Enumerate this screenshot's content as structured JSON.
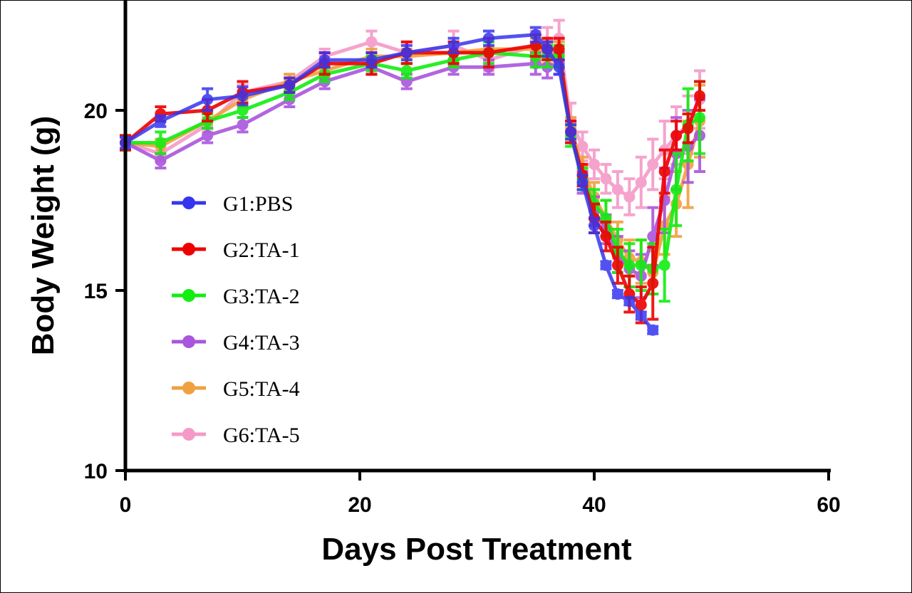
{
  "chart_data": {
    "type": "line",
    "title": "",
    "xlabel": "Days Post Treatment",
    "ylabel": "Body Weight (g)",
    "xlim": [
      0,
      60
    ],
    "ylim": [
      10,
      22.8
    ],
    "x_ticks": [
      "0",
      "20",
      "40",
      "60"
    ],
    "y_ticks": [
      "10",
      "15",
      "20"
    ],
    "grid": false,
    "legend_position": "left",
    "series": [
      {
        "name": "G1:PBS",
        "color": "#3535f0",
        "x": [
          0,
          3,
          7,
          10,
          14,
          17,
          21,
          24,
          28,
          31,
          35,
          36,
          37,
          38,
          39,
          40,
          41,
          42,
          43,
          44,
          45
        ],
        "y": [
          19.1,
          19.7,
          20.3,
          20.4,
          20.7,
          21.4,
          21.4,
          21.6,
          21.8,
          22.0,
          22.1,
          21.7,
          21.2,
          19.4,
          18.0,
          16.8,
          15.7,
          14.9,
          14.7,
          14.3,
          13.9
        ],
        "err": [
          0.15,
          0.15,
          0.3,
          0.25,
          0.2,
          0.2,
          0.2,
          0.2,
          0.2,
          0.2,
          0.2,
          0.2,
          0.2,
          0.2,
          0.2,
          0.2,
          0.1,
          0.1,
          0.1,
          0.1,
          0.1
        ]
      },
      {
        "name": "G2:TA-1",
        "color": "#ee0000",
        "x": [
          0,
          3,
          7,
          10,
          14,
          17,
          21,
          24,
          28,
          31,
          35,
          36,
          37,
          38,
          39,
          40,
          41,
          42,
          43,
          44,
          45,
          46,
          47,
          48,
          49
        ],
        "y": [
          19.1,
          19.9,
          20.0,
          20.5,
          20.7,
          21.3,
          21.3,
          21.6,
          21.6,
          21.6,
          21.8,
          21.7,
          21.7,
          19.4,
          18.2,
          17.0,
          16.5,
          15.7,
          14.9,
          14.6,
          15.2,
          18.3,
          19.3,
          19.5,
          20.4
        ],
        "err": [
          0.2,
          0.2,
          0.3,
          0.3,
          0.2,
          0.3,
          0.3,
          0.3,
          0.3,
          0.4,
          0.3,
          0.3,
          0.3,
          0.3,
          0.3,
          0.4,
          0.4,
          0.5,
          0.5,
          0.5,
          1.0,
          0.6,
          0.4,
          0.4,
          0.4
        ]
      },
      {
        "name": "G3:TA-2",
        "color": "#11ee11",
        "x": [
          0,
          3,
          7,
          10,
          14,
          17,
          21,
          24,
          28,
          31,
          35,
          36,
          37,
          38,
          39,
          40,
          41,
          42,
          43,
          44,
          45,
          46,
          47,
          48,
          49
        ],
        "y": [
          19.1,
          19.1,
          19.7,
          20.0,
          20.5,
          21.0,
          21.3,
          21.1,
          21.4,
          21.6,
          21.5,
          21.5,
          21.5,
          19.3,
          18.1,
          17.4,
          17.0,
          16.1,
          15.7,
          15.7,
          15.6,
          15.7,
          17.8,
          19.6,
          19.8
        ],
        "err": [
          0.2,
          0.3,
          0.2,
          0.2,
          0.2,
          0.2,
          0.2,
          0.2,
          0.2,
          0.3,
          0.3,
          0.3,
          0.3,
          0.3,
          0.3,
          0.4,
          0.5,
          0.6,
          0.6,
          0.7,
          0.7,
          1.0,
          1.0,
          1.0,
          1.0
        ]
      },
      {
        "name": "G4:TA-3",
        "color": "#aa55dd",
        "x": [
          0,
          3,
          7,
          10,
          14,
          17,
          21,
          24,
          28,
          31,
          35,
          36,
          37,
          38,
          39,
          40,
          41,
          42,
          43,
          44,
          45,
          46,
          47,
          48,
          49
        ],
        "y": [
          19.1,
          18.6,
          19.3,
          19.6,
          20.3,
          20.8,
          21.2,
          20.8,
          21.2,
          21.2,
          21.3,
          21.2,
          21.3,
          19.4,
          18.0,
          17.2,
          16.7,
          16.0,
          15.6,
          15.4,
          16.5,
          17.5,
          18.8,
          19.0,
          19.3
        ],
        "err": [
          0.2,
          0.2,
          0.2,
          0.2,
          0.2,
          0.2,
          0.2,
          0.2,
          0.2,
          0.2,
          0.3,
          0.3,
          0.3,
          0.3,
          0.3,
          0.4,
          0.4,
          0.5,
          0.5,
          0.6,
          0.8,
          0.9,
          1.0,
          1.0,
          1.0
        ]
      },
      {
        "name": "G5:TA-4",
        "color": "#f0a040",
        "x": [
          0,
          3,
          7,
          10,
          14,
          17,
          21,
          24,
          28,
          31,
          35,
          36,
          37,
          38,
          39,
          40,
          41,
          42,
          43,
          44,
          45,
          46,
          47,
          48,
          49
        ],
        "y": [
          19.1,
          19.0,
          19.7,
          20.3,
          20.8,
          21.1,
          21.5,
          21.5,
          21.6,
          21.7,
          21.7,
          21.6,
          21.6,
          19.5,
          18.4,
          17.6,
          17.0,
          16.4,
          15.9,
          15.8,
          15.5,
          16.8,
          17.4,
          18.5,
          19.7
        ],
        "err": [
          0.2,
          0.2,
          0.2,
          0.2,
          0.2,
          0.2,
          0.2,
          0.2,
          0.3,
          0.3,
          0.3,
          0.3,
          0.3,
          0.3,
          0.3,
          0.4,
          0.5,
          0.5,
          0.5,
          0.6,
          0.6,
          0.8,
          0.9,
          1.2,
          1.0
        ]
      },
      {
        "name": "G6:TA-5",
        "color": "#f59ac8",
        "x": [
          0,
          3,
          7,
          10,
          14,
          17,
          21,
          24,
          28,
          31,
          35,
          36,
          37,
          38,
          39,
          40,
          41,
          42,
          43,
          44,
          45,
          46,
          47,
          48,
          49
        ],
        "y": [
          19.1,
          18.8,
          19.6,
          20.5,
          20.8,
          21.5,
          21.9,
          21.6,
          21.8,
          21.4,
          21.8,
          21.9,
          22.0,
          19.7,
          19.0,
          18.5,
          18.1,
          17.8,
          17.6,
          18.0,
          18.5,
          18.9,
          19.3,
          19.6,
          20.3
        ],
        "err": [
          0.2,
          0.2,
          0.2,
          0.2,
          0.2,
          0.2,
          0.3,
          0.3,
          0.4,
          0.3,
          0.4,
          0.4,
          0.5,
          0.5,
          0.4,
          0.4,
          0.4,
          0.5,
          0.5,
          0.7,
          0.7,
          0.8,
          0.8,
          0.8,
          0.8
        ]
      }
    ]
  }
}
